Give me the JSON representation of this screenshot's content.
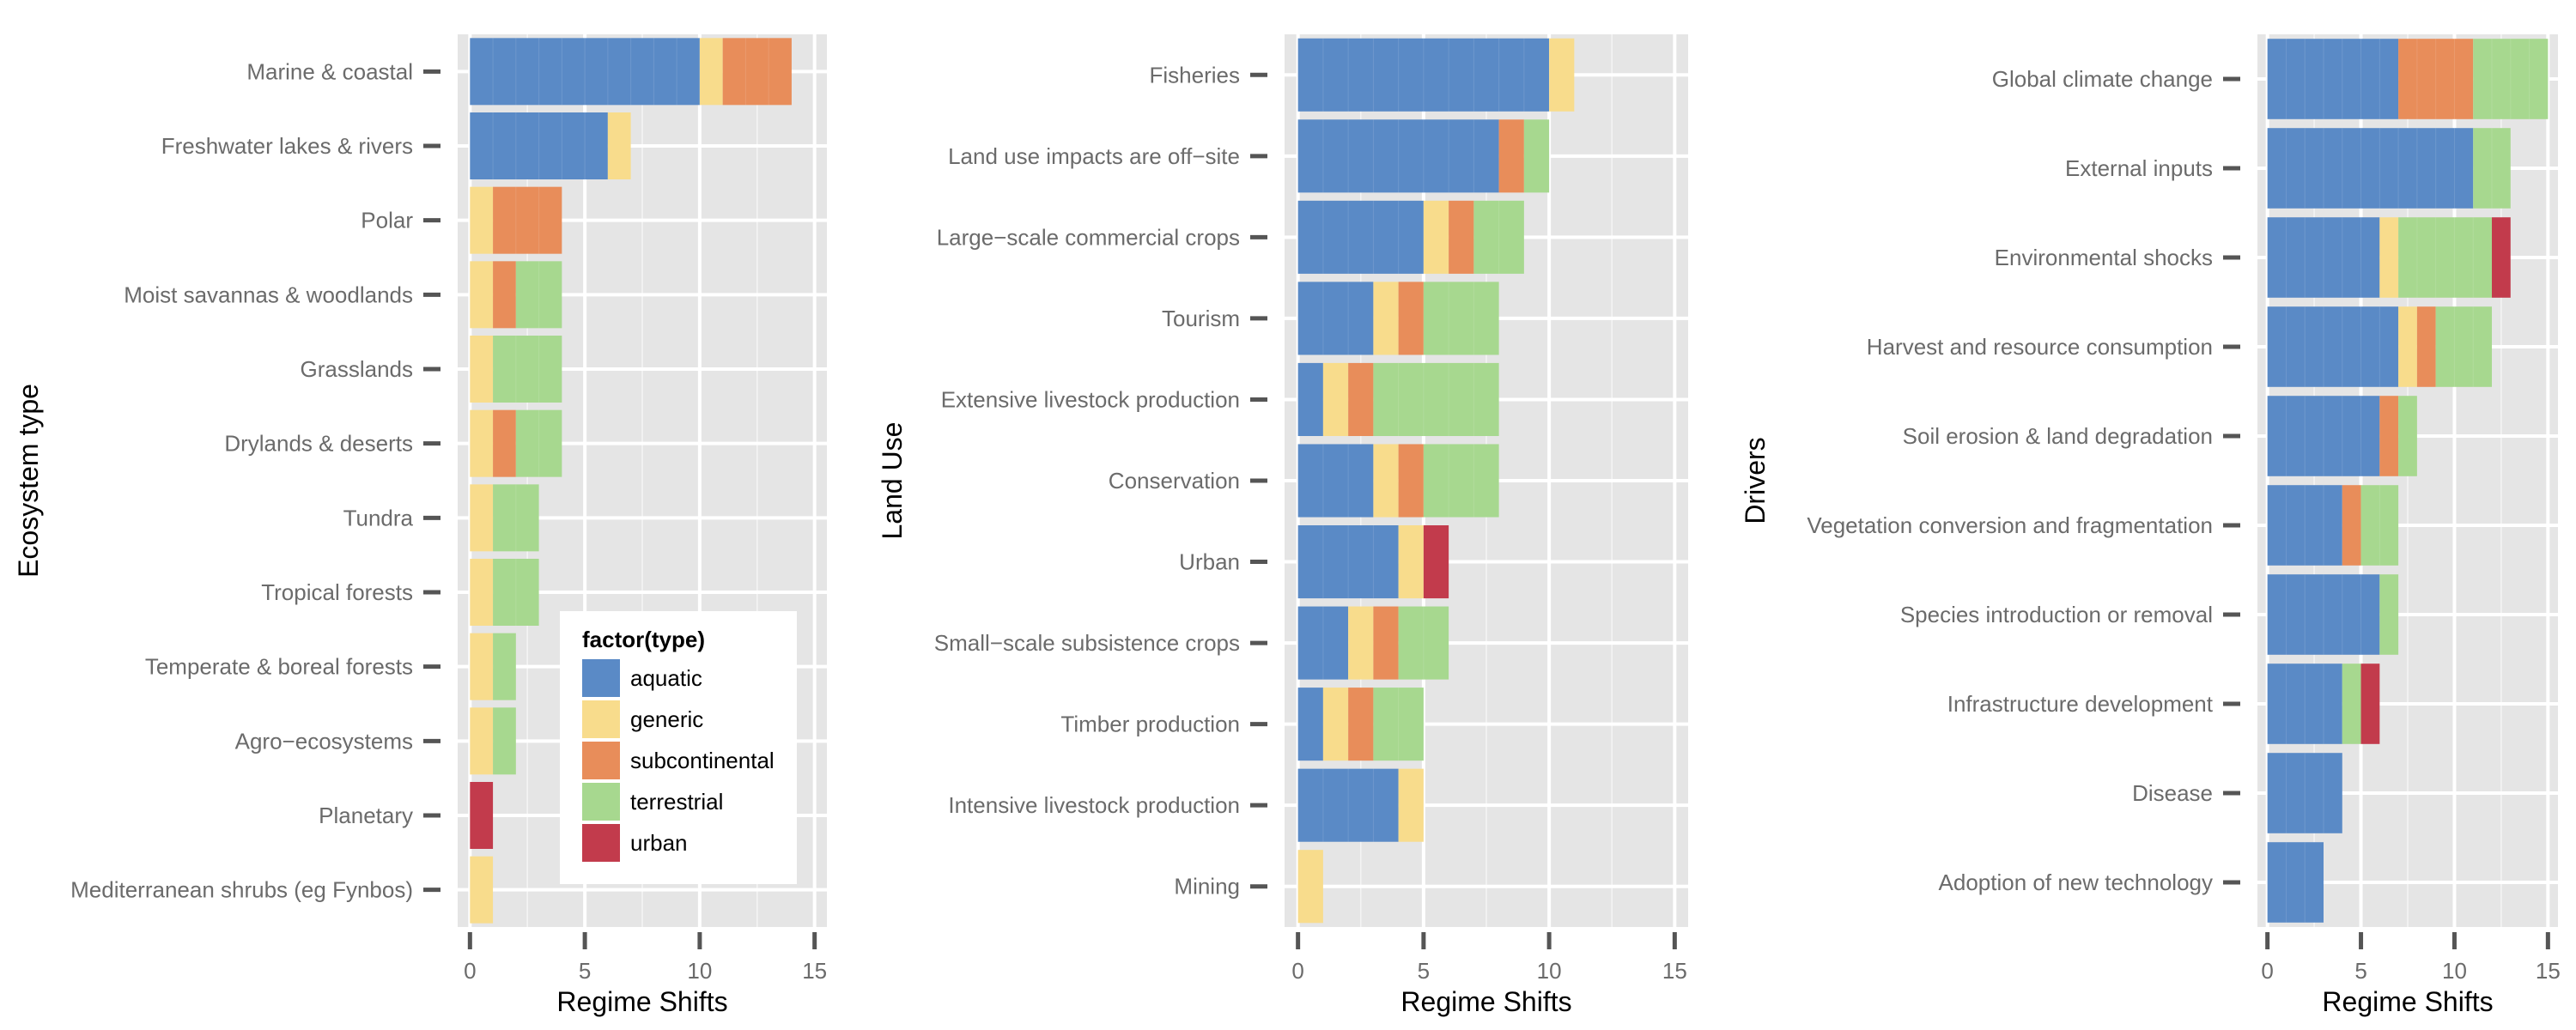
{
  "colors": {
    "aquatic": "#5a8ac6",
    "generic": "#f8dc8c",
    "subcontinental": "#e88d5a",
    "terrestrial": "#a7d88f",
    "urban": "#c23b4c",
    "panel_bg": "#e5e5e5",
    "grid": "#ffffff",
    "tick_text": "#6b6b6b",
    "axis_title": "#000000"
  },
  "legend": {
    "title": "factor(type)",
    "items": [
      "aquatic",
      "generic",
      "subcontinental",
      "terrestrial",
      "urban"
    ]
  },
  "chart_data": [
    {
      "type": "bar",
      "orientation": "horizontal",
      "stacked": true,
      "xlabel": "Regime Shifts",
      "ylabel": "Ecosystem type",
      "xlim": [
        0,
        15
      ],
      "xticks": [
        0,
        5,
        10,
        15
      ],
      "grid": true,
      "legend_position": "bottom-right inside",
      "categories": [
        "Marine & coastal",
        "Freshwater lakes & rivers",
        "Polar",
        "Moist savannas & woodlands",
        "Grasslands",
        "Drylands & deserts",
        "Tundra",
        "Tropical forests",
        "Temperate & boreal forests",
        "Agro−ecosystems",
        "Planetary",
        "Mediterranean shrubs (eg Fynbos)"
      ],
      "series": [
        {
          "name": "aquatic",
          "values": [
            10,
            6,
            0,
            0,
            0,
            0,
            0,
            0,
            0,
            0,
            0,
            0
          ]
        },
        {
          "name": "generic",
          "values": [
            1,
            1,
            1,
            1,
            1,
            1,
            1,
            1,
            1,
            1,
            0,
            1
          ]
        },
        {
          "name": "subcontinental",
          "values": [
            3,
            0,
            3,
            1,
            0,
            1,
            0,
            0,
            0,
            0,
            0,
            0
          ]
        },
        {
          "name": "terrestrial",
          "values": [
            0,
            0,
            0,
            2,
            3,
            2,
            2,
            2,
            1,
            1,
            0,
            0
          ]
        },
        {
          "name": "urban",
          "values": [
            0,
            0,
            0,
            0,
            0,
            0,
            0,
            0,
            0,
            0,
            1,
            0
          ]
        }
      ]
    },
    {
      "type": "bar",
      "orientation": "horizontal",
      "stacked": true,
      "xlabel": "Regime Shifts",
      "ylabel": "Land Use",
      "xlim": [
        0,
        15
      ],
      "xticks": [
        0,
        5,
        10,
        15
      ],
      "grid": true,
      "categories": [
        "Fisheries",
        "Land use impacts are off−site",
        "Large−scale commercial crops",
        "Tourism",
        "Extensive livestock production",
        "Conservation",
        "Urban",
        "Small−scale subsistence crops",
        "Timber production",
        "Intensive livestock production",
        "Mining"
      ],
      "series": [
        {
          "name": "aquatic",
          "values": [
            10,
            8,
            5,
            3,
            1,
            3,
            4,
            2,
            1,
            4,
            0
          ]
        },
        {
          "name": "generic",
          "values": [
            1,
            0,
            1,
            1,
            1,
            1,
            1,
            1,
            1,
            1,
            1
          ]
        },
        {
          "name": "subcontinental",
          "values": [
            0,
            1,
            1,
            1,
            1,
            1,
            0,
            1,
            1,
            0,
            0
          ]
        },
        {
          "name": "terrestrial",
          "values": [
            0,
            1,
            2,
            3,
            5,
            3,
            0,
            2,
            2,
            0,
            0
          ]
        },
        {
          "name": "urban",
          "values": [
            0,
            0,
            0,
            0,
            0,
            0,
            1,
            0,
            0,
            0,
            0
          ]
        }
      ]
    },
    {
      "type": "bar",
      "orientation": "horizontal",
      "stacked": true,
      "xlabel": "Regime Shifts",
      "ylabel": "Drivers",
      "xlim": [
        0,
        15
      ],
      "xticks": [
        0,
        5,
        10,
        15
      ],
      "grid": true,
      "categories": [
        "Global climate change",
        "External inputs",
        "Environmental shocks",
        "Harvest and resource consumption",
        "Soil erosion & land degradation",
        "Vegetation conversion and  fragmentation",
        "Species introduction or removal",
        "Infrastructure development",
        "Disease",
        "Adoption of new technology"
      ],
      "series": [
        {
          "name": "aquatic",
          "values": [
            7,
            11,
            6,
            7,
            6,
            4,
            6,
            4,
            4,
            3
          ]
        },
        {
          "name": "generic",
          "values": [
            0,
            0,
            1,
            1,
            0,
            0,
            0,
            0,
            0,
            0
          ]
        },
        {
          "name": "subcontinental",
          "values": [
            4,
            0,
            0,
            1,
            1,
            1,
            0,
            0,
            0,
            0
          ]
        },
        {
          "name": "terrestrial",
          "values": [
            4,
            2,
            5,
            3,
            1,
            2,
            1,
            1,
            0,
            0
          ]
        },
        {
          "name": "urban",
          "values": [
            0,
            0,
            1,
            0,
            0,
            0,
            0,
            1,
            0,
            0
          ]
        }
      ]
    }
  ]
}
